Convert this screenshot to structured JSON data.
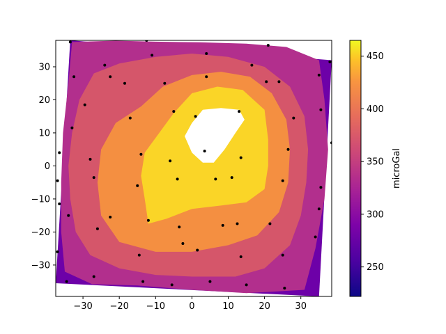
{
  "chart_data": {
    "type": "contour",
    "title": "",
    "xlabel": "",
    "ylabel": "",
    "xlim": [
      -37.5,
      38.5
    ],
    "ylim": [
      -39.5,
      38
    ],
    "x_ticks": [
      -30,
      -20,
      -10,
      0,
      10,
      20,
      30
    ],
    "y_ticks": [
      -30,
      -20,
      -10,
      0,
      10,
      20,
      30
    ],
    "colorbar": {
      "label": "microGal",
      "range": [
        222,
        465
      ],
      "ticks": [
        250,
        300,
        350,
        400,
        450
      ],
      "colormap": "plasma"
    },
    "levels": [
      {
        "range": [
          222,
          260
        ],
        "color": "#2d0795"
      },
      {
        "range": [
          260,
          300
        ],
        "color": "#6d01a8"
      },
      {
        "range": [
          300,
          340
        ],
        "color": "#b22f8d"
      },
      {
        "range": [
          340,
          380
        ],
        "color": "#d5566a"
      },
      {
        "range": [
          380,
          420
        ],
        "color": "#f48f41"
      },
      {
        "range": [
          420,
          460
        ],
        "color": "#fad527"
      }
    ],
    "data_region": [
      [
        -33.5,
        38
      ],
      [
        38.5,
        32
      ],
      [
        35,
        -39.5
      ],
      [
        -37.5,
        -35.5
      ]
    ],
    "regions": [
      {
        "level": 2,
        "points": [
          [
            -33,
            37.5
          ],
          [
            -21,
            37.9
          ],
          [
            -10,
            37.6
          ],
          [
            2,
            37.4
          ],
          [
            15,
            37
          ],
          [
            26,
            36
          ],
          [
            35,
            32
          ],
          [
            36.5,
            20
          ],
          [
            37.5,
            5
          ],
          [
            36.5,
            -10
          ],
          [
            34,
            -25
          ],
          [
            31,
            -37.5
          ],
          [
            15,
            -38.5
          ],
          [
            0,
            -37.5
          ],
          [
            -15,
            -36.2
          ],
          [
            -27.5,
            -35.8
          ],
          [
            -35,
            -32
          ],
          [
            -36,
            -20
          ],
          [
            -36,
            -5
          ],
          [
            -35.5,
            10
          ],
          [
            -34,
            25
          ]
        ]
      },
      {
        "level": 3,
        "points": [
          [
            -27,
            28
          ],
          [
            -20,
            31
          ],
          [
            -10,
            33
          ],
          [
            0,
            34
          ],
          [
            10,
            33
          ],
          [
            20,
            30
          ],
          [
            27,
            24
          ],
          [
            31,
            15
          ],
          [
            32,
            5
          ],
          [
            31.5,
            -5
          ],
          [
            30,
            -15
          ],
          [
            27,
            -24
          ],
          [
            20,
            -31
          ],
          [
            12,
            -33.5
          ],
          [
            0,
            -33.5
          ],
          [
            -10,
            -33
          ],
          [
            -20,
            -31
          ],
          [
            -28,
            -27
          ],
          [
            -32,
            -20
          ],
          [
            -33.5,
            -10
          ],
          [
            -34,
            0
          ],
          [
            -33,
            10
          ],
          [
            -31,
            20
          ]
        ]
      },
      {
        "level": 4,
        "points": [
          [
            -14,
            18
          ],
          [
            -8,
            24
          ],
          [
            0,
            27.5
          ],
          [
            8,
            28.5
          ],
          [
            16,
            27
          ],
          [
            22,
            22
          ],
          [
            26,
            14
          ],
          [
            27,
            5
          ],
          [
            26.5,
            -5
          ],
          [
            24,
            -14
          ],
          [
            18,
            -21
          ],
          [
            10,
            -24
          ],
          [
            0,
            -26
          ],
          [
            -10,
            -26
          ],
          [
            -20,
            -23
          ],
          [
            -25,
            -15
          ],
          [
            -26,
            -5
          ],
          [
            -25,
            5
          ],
          [
            -21,
            13
          ]
        ]
      },
      {
        "level": 5,
        "points": [
          [
            -5,
            16
          ],
          [
            0,
            22
          ],
          [
            7,
            24
          ],
          [
            14,
            23
          ],
          [
            20,
            17
          ],
          [
            21,
            8
          ],
          [
            21,
            0
          ],
          [
            20,
            -7
          ],
          [
            15,
            -11
          ],
          [
            8,
            -12
          ],
          [
            0,
            -13
          ],
          [
            -7,
            -16
          ],
          [
            -12,
            -17.5
          ],
          [
            -13,
            -10
          ],
          [
            -14,
            -3
          ],
          [
            -13,
            4
          ],
          [
            -9,
            10
          ]
        ]
      },
      {
        "level": -1,
        "points": [
          [
            0,
            13
          ],
          [
            3,
            17
          ],
          [
            8,
            17.5
          ],
          [
            13,
            17
          ],
          [
            14.5,
            14
          ],
          [
            12,
            10
          ],
          [
            9,
            5
          ],
          [
            6,
            1
          ],
          [
            3,
            1
          ],
          [
            0,
            4
          ],
          [
            -2,
            9
          ]
        ]
      }
    ],
    "points": [
      [
        -33.5,
        37.5
      ],
      [
        -24,
        30.5
      ],
      [
        -12.5,
        38
      ],
      [
        4,
        34
      ],
      [
        21,
        36.5
      ],
      [
        38,
        31.5
      ],
      [
        -32.5,
        27
      ],
      [
        -22.5,
        27
      ],
      [
        -18.5,
        25
      ],
      [
        -7.5,
        25
      ],
      [
        -11,
        33.5
      ],
      [
        4,
        27
      ],
      [
        16.5,
        30.5
      ],
      [
        20.5,
        25.5
      ],
      [
        24,
        25.5
      ],
      [
        35,
        27.5
      ],
      [
        -29.5,
        18.5
      ],
      [
        -17,
        14.5
      ],
      [
        -5,
        16.5
      ],
      [
        1,
        15
      ],
      [
        13,
        16.5
      ],
      [
        28,
        14.5
      ],
      [
        35.5,
        17
      ],
      [
        -33,
        11.5
      ],
      [
        -36.5,
        4
      ],
      [
        -37,
        -4.5
      ],
      [
        -28,
        2
      ],
      [
        -27,
        -3.5
      ],
      [
        -14,
        3.5
      ],
      [
        -6,
        1.5
      ],
      [
        -4,
        -4
      ],
      [
        3.5,
        4.5
      ],
      [
        6.5,
        -4
      ],
      [
        11,
        -3.5
      ],
      [
        13.5,
        2.5
      ],
      [
        26.5,
        5
      ],
      [
        38.5,
        7
      ],
      [
        25,
        -4.5
      ],
      [
        35.5,
        -6.5
      ],
      [
        -15,
        -6
      ],
      [
        -36.5,
        -11.5
      ],
      [
        -34,
        -15
      ],
      [
        -22.5,
        -15.5
      ],
      [
        -12,
        -16.5
      ],
      [
        -3.5,
        -18.5
      ],
      [
        8.5,
        -18
      ],
      [
        12.5,
        -17.5
      ],
      [
        21.5,
        -17.5
      ],
      [
        -26,
        -19
      ],
      [
        -14.5,
        -27
      ],
      [
        -2.5,
        -23.5
      ],
      [
        1.5,
        -25.5
      ],
      [
        13.5,
        -27.5
      ],
      [
        25,
        -27
      ],
      [
        34,
        -21.5
      ],
      [
        35,
        -13
      ],
      [
        -37,
        -26
      ],
      [
        -27,
        -33.5
      ],
      [
        -13.5,
        -35
      ],
      [
        -5.5,
        -36
      ],
      [
        5,
        -35
      ],
      [
        15,
        -36
      ],
      [
        25.5,
        -37
      ],
      [
        -34.5,
        -35
      ]
    ]
  }
}
